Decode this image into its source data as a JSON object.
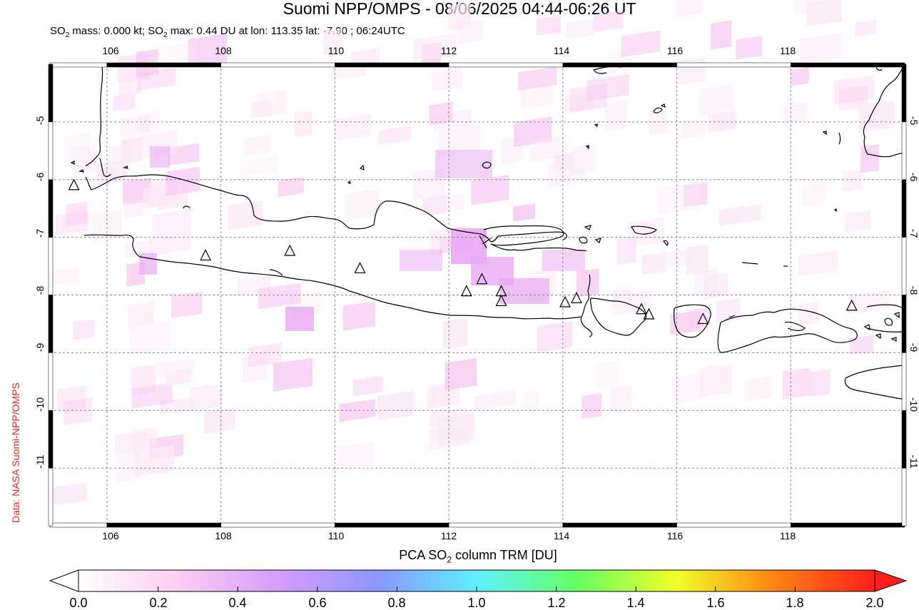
{
  "title": "Suomi NPP/OMPS - 08/06/2025 04:44-06:26 UT",
  "subtitle": {
    "mass_prefix": "SO",
    "mass_sub": "2",
    "mass_text": " mass: 0.000 kt; SO",
    "max_sub": "2",
    "max_text": " max: 0.44 DU at lon: 113.35 lat: -7.90 ; 06:24UTC"
  },
  "credit": "Data: NASA Suomi-NPP/OMPS",
  "map": {
    "lon_range": [
      105.0,
      120.0
    ],
    "lat_range": [
      -12.0,
      -4.0
    ],
    "lon_ticks": [
      "106",
      "108",
      "110",
      "112",
      "114",
      "116",
      "118"
    ],
    "lat_ticks": [
      "-5",
      "-6",
      "-7",
      "-8",
      "-9",
      "-10",
      "-11"
    ],
    "grid": "dotted",
    "volcanoes": [
      {
        "lon": 105.42,
        "lat": -6.1
      },
      {
        "lon": 107.73,
        "lat": -7.32
      },
      {
        "lon": 109.21,
        "lat": -7.24
      },
      {
        "lon": 110.44,
        "lat": -7.54
      },
      {
        "lon": 112.31,
        "lat": -7.94
      },
      {
        "lon": 112.58,
        "lat": -7.73
      },
      {
        "lon": 112.92,
        "lat": -7.94
      },
      {
        "lon": 112.92,
        "lat": -8.11
      },
      {
        "lon": 114.04,
        "lat": -8.13
      },
      {
        "lon": 114.24,
        "lat": -8.06
      },
      {
        "lon": 115.38,
        "lat": -8.25
      },
      {
        "lon": 115.51,
        "lat": -8.34
      },
      {
        "lon": 116.46,
        "lat": -8.42
      },
      {
        "lon": 119.07,
        "lat": -8.19
      }
    ]
  },
  "colorbar": {
    "title_prefix": "PCA SO",
    "title_sub": "2",
    "title_suffix": " column TRM [DU]",
    "ticks": [
      "0.0",
      "0.2",
      "0.4",
      "0.6",
      "0.8",
      "1.0",
      "1.2",
      "1.4",
      "1.6",
      "1.8",
      "2.0"
    ],
    "range": [
      0.0,
      2.0
    ],
    "colors": [
      "#ffffff",
      "#ffccf2",
      "#d79cff",
      "#8c96ff",
      "#5ff0ff",
      "#64ff64",
      "#f0ff28",
      "#ff8214",
      "#ff1e1e"
    ]
  },
  "colors": {
    "so2_light": "#fde8f6",
    "so2_mid": "#f6c8f2",
    "so2_peak": "#e9a8f4",
    "coast": "#000000",
    "credit": "#e8261e"
  }
}
